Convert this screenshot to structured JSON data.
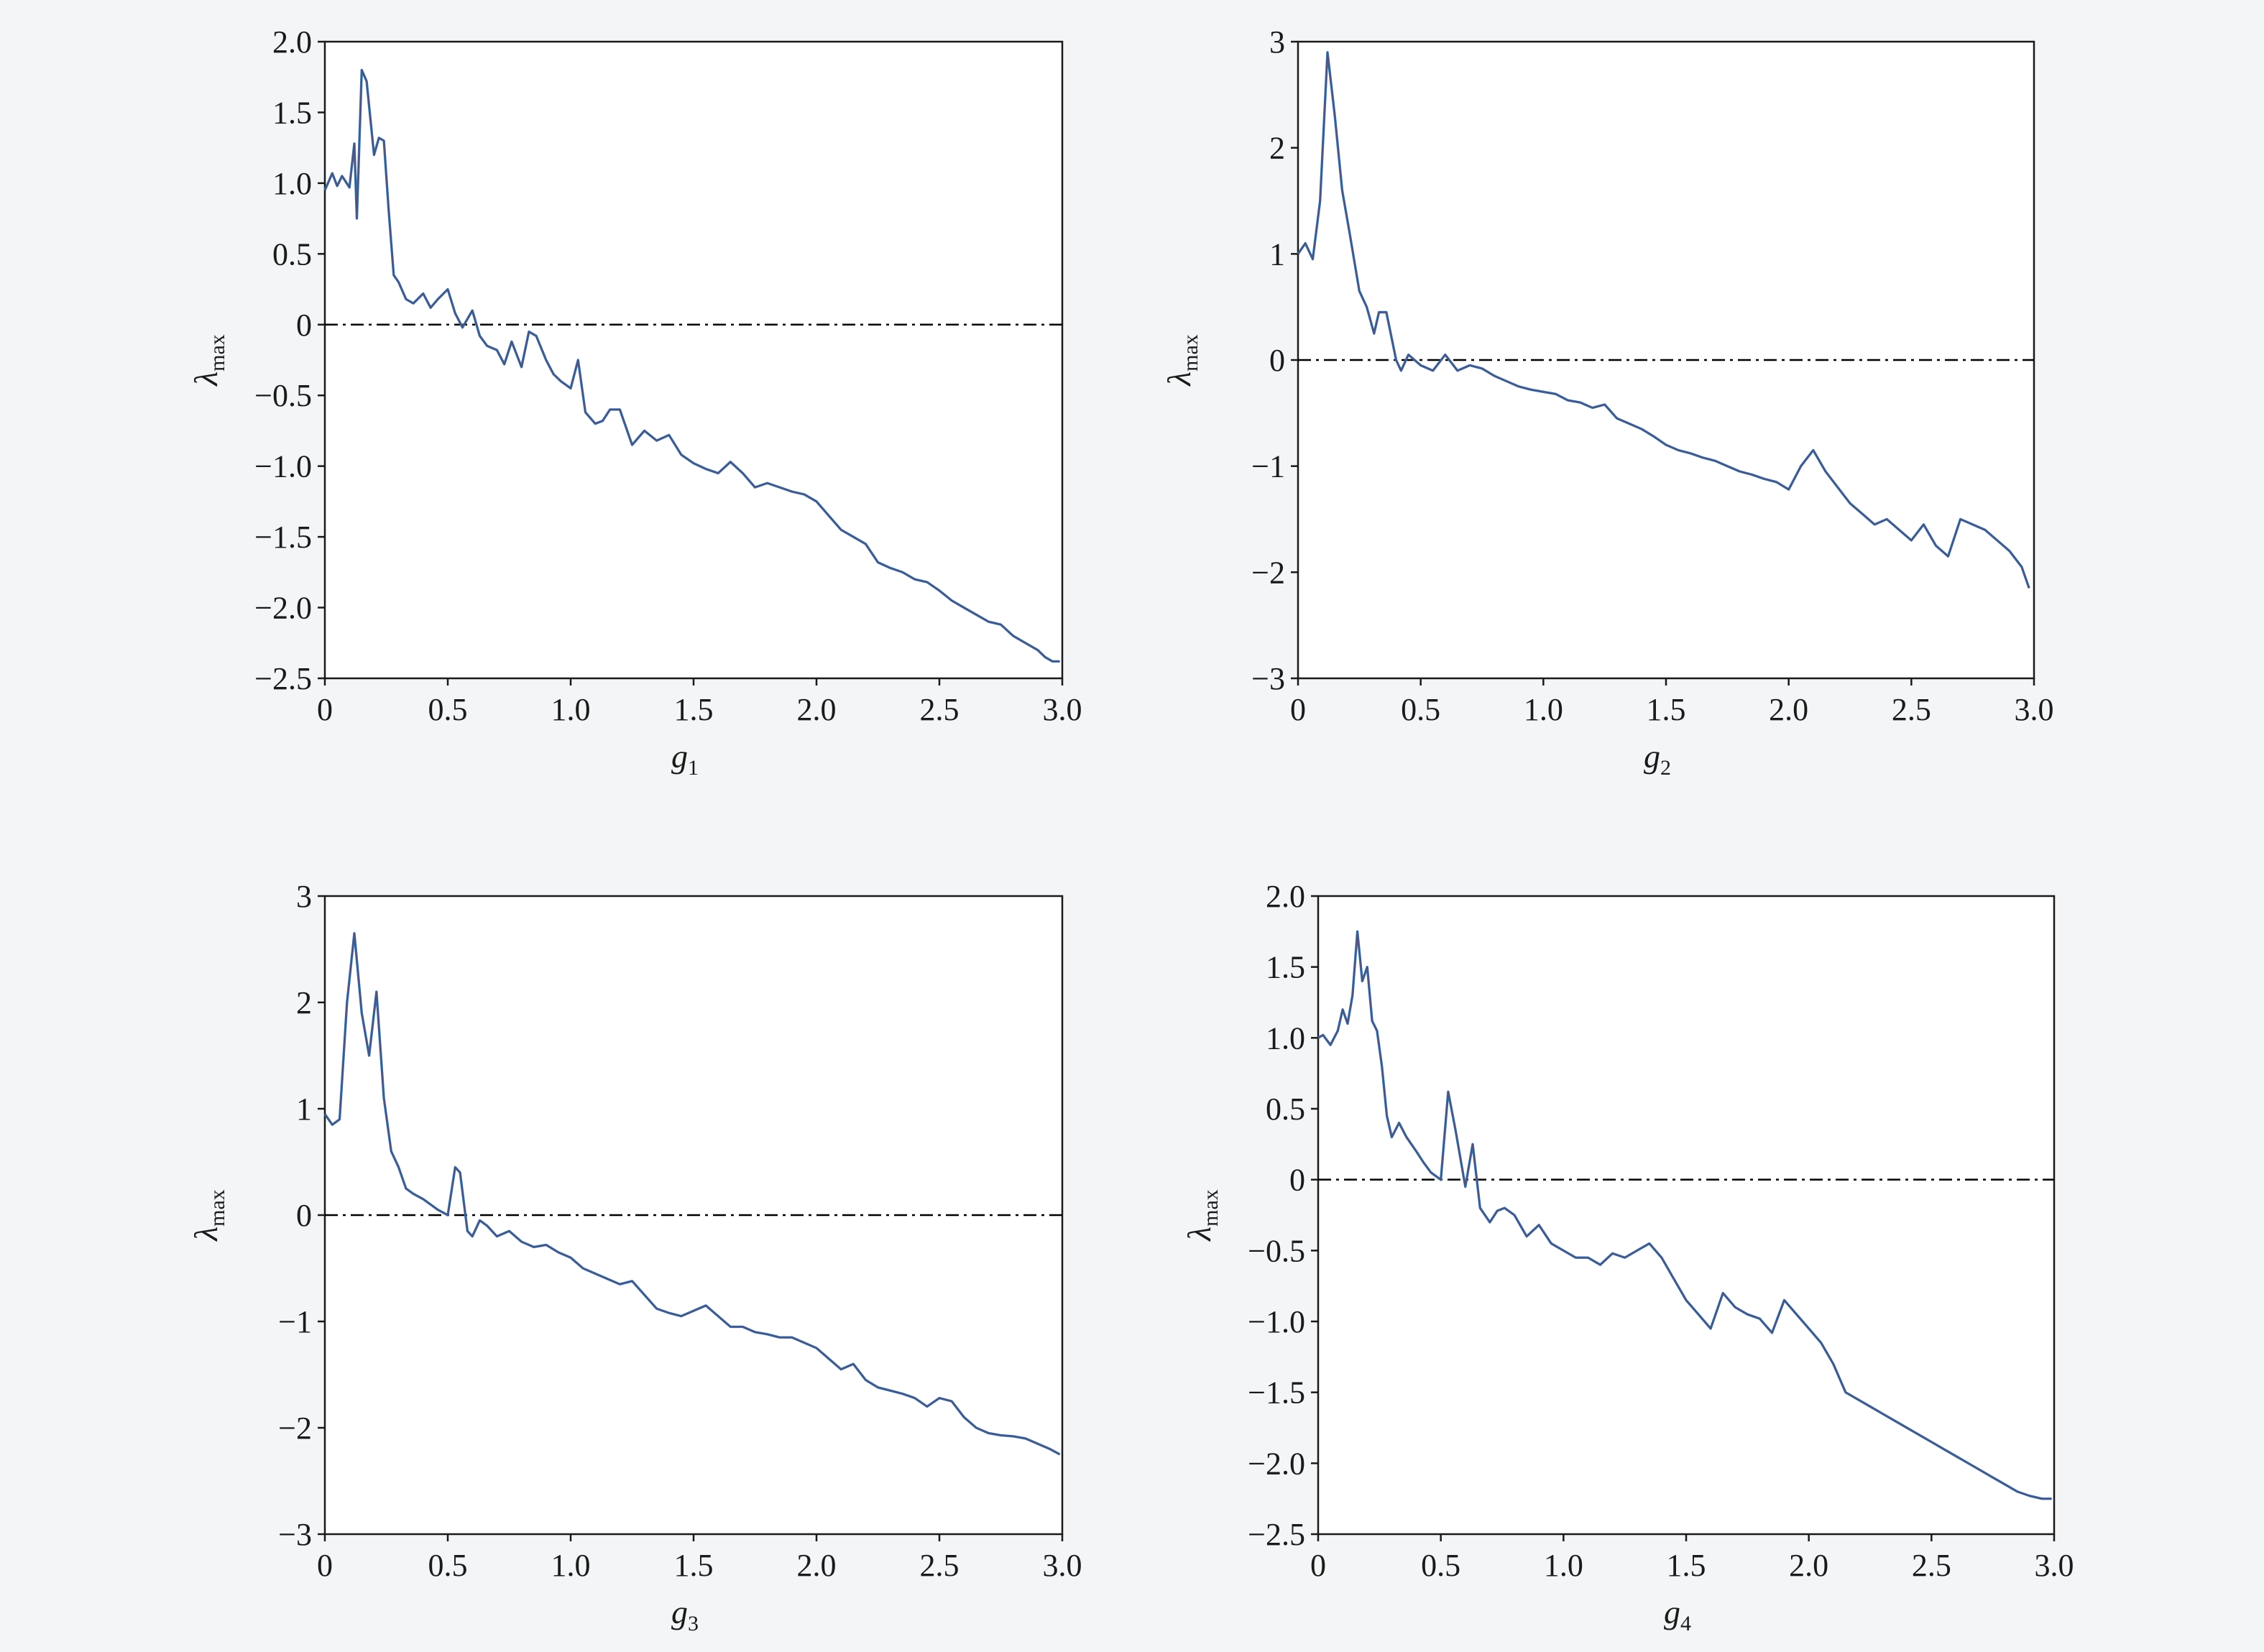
{
  "figure": {
    "line_color_primary": "#2b7bba",
    "line_color_overlay": "#5a4a6e",
    "reference_line_style": "dash-dot",
    "reference_color": "#000000"
  },
  "chart_data": [
    {
      "id": "g1",
      "type": "line",
      "xlabel_main": "g",
      "xlabel_sub": "1",
      "ylabel_main": "λ",
      "ylabel_sub": "max",
      "xlim": [
        0,
        3.0
      ],
      "ylim": [
        -2.5,
        2.0
      ],
      "xticks": [
        "0",
        "0.5",
        "1.0",
        "1.5",
        "2.0",
        "2.5",
        "3.0"
      ],
      "yticks": [
        "2.0",
        "1.5",
        "1.0",
        "0.5",
        "0",
        "−0.5",
        "−1.0",
        "−1.5",
        "−2.0",
        "−2.5"
      ],
      "reference_y": 0,
      "grid": false,
      "series": [
        {
          "x": [
            0,
            0.03,
            0.05,
            0.07,
            0.1,
            0.12,
            0.13,
            0.15,
            0.17,
            0.2,
            0.22,
            0.24,
            0.26,
            0.28,
            0.3,
            0.33,
            0.36,
            0.4,
            0.43,
            0.46,
            0.5,
            0.53,
            0.56,
            0.6,
            0.63,
            0.66,
            0.7,
            0.73,
            0.76,
            0.8,
            0.83,
            0.86,
            0.9,
            0.93,
            0.96,
            1.0,
            1.03,
            1.06,
            1.1,
            1.13,
            1.16,
            1.2,
            1.25,
            1.3,
            1.35,
            1.4,
            1.45,
            1.5,
            1.55,
            1.6,
            1.65,
            1.7,
            1.75,
            1.8,
            1.85,
            1.9,
            1.95,
            2.0,
            2.05,
            2.1,
            2.15,
            2.2,
            2.25,
            2.3,
            2.35,
            2.4,
            2.45,
            2.5,
            2.55,
            2.6,
            2.65,
            2.7,
            2.75,
            2.8,
            2.85,
            2.9,
            2.93,
            2.96,
            2.99
          ],
          "y": [
            0.95,
            1.07,
            0.98,
            1.05,
            0.97,
            1.28,
            0.75,
            1.8,
            1.72,
            1.2,
            1.32,
            1.3,
            0.8,
            0.35,
            0.3,
            0.18,
            0.15,
            0.22,
            0.12,
            0.18,
            0.25,
            0.08,
            -0.02,
            0.1,
            -0.08,
            -0.15,
            -0.18,
            -0.28,
            -0.12,
            -0.3,
            -0.05,
            -0.08,
            -0.25,
            -0.35,
            -0.4,
            -0.45,
            -0.25,
            -0.62,
            -0.7,
            -0.68,
            -0.6,
            -0.6,
            -0.85,
            -0.75,
            -0.82,
            -0.78,
            -0.92,
            -0.98,
            -1.02,
            -1.05,
            -0.97,
            -1.05,
            -1.15,
            -1.12,
            -1.15,
            -1.18,
            -1.2,
            -1.25,
            -1.35,
            -1.45,
            -1.5,
            -1.55,
            -1.68,
            -1.72,
            -1.75,
            -1.8,
            -1.82,
            -1.88,
            -1.95,
            -2.0,
            -2.05,
            -2.1,
            -2.12,
            -2.2,
            -2.25,
            -2.3,
            -2.35,
            -2.38,
            -2.38
          ]
        }
      ]
    },
    {
      "id": "g2",
      "type": "line",
      "xlabel_main": "g",
      "xlabel_sub": "2",
      "ylabel_main": "λ",
      "ylabel_sub": "max",
      "xlim": [
        0,
        3.0
      ],
      "ylim": [
        -3,
        3
      ],
      "xticks": [
        "0",
        "0.5",
        "1.0",
        "1.5",
        "2.0",
        "2.5",
        "3.0"
      ],
      "yticks": [
        "3",
        "2",
        "1",
        "0",
        "−1",
        "−2",
        "−3"
      ],
      "reference_y": 0,
      "grid": false,
      "series": [
        {
          "x": [
            0,
            0.03,
            0.06,
            0.09,
            0.12,
            0.15,
            0.18,
            0.21,
            0.25,
            0.28,
            0.31,
            0.33,
            0.36,
            0.4,
            0.42,
            0.45,
            0.5,
            0.55,
            0.6,
            0.65,
            0.7,
            0.75,
            0.8,
            0.85,
            0.9,
            0.95,
            1.0,
            1.05,
            1.1,
            1.15,
            1.2,
            1.25,
            1.3,
            1.35,
            1.4,
            1.45,
            1.5,
            1.55,
            1.6,
            1.65,
            1.7,
            1.75,
            1.8,
            1.85,
            1.9,
            1.95,
            2.0,
            2.05,
            2.1,
            2.15,
            2.2,
            2.25,
            2.3,
            2.35,
            2.4,
            2.45,
            2.5,
            2.55,
            2.6,
            2.65,
            2.7,
            2.75,
            2.8,
            2.85,
            2.9,
            2.95,
            2.98
          ],
          "y": [
            1.0,
            1.1,
            0.95,
            1.5,
            2.9,
            2.3,
            1.6,
            1.2,
            0.65,
            0.5,
            0.25,
            0.45,
            0.45,
            0.0,
            -0.1,
            0.05,
            -0.05,
            -0.1,
            0.05,
            -0.1,
            -0.05,
            -0.08,
            -0.15,
            -0.2,
            -0.25,
            -0.28,
            -0.3,
            -0.32,
            -0.38,
            -0.4,
            -0.45,
            -0.42,
            -0.55,
            -0.6,
            -0.65,
            -0.72,
            -0.8,
            -0.85,
            -0.88,
            -0.92,
            -0.95,
            -1.0,
            -1.05,
            -1.08,
            -1.12,
            -1.15,
            -1.22,
            -1.0,
            -0.85,
            -1.05,
            -1.2,
            -1.35,
            -1.45,
            -1.55,
            -1.5,
            -1.6,
            -1.7,
            -1.55,
            -1.75,
            -1.85,
            -1.5,
            -1.55,
            -1.6,
            -1.7,
            -1.8,
            -1.95,
            -2.15
          ]
        }
      ]
    },
    {
      "id": "g3",
      "type": "line",
      "xlabel_main": "g",
      "xlabel_sub": "3",
      "ylabel_main": "λ",
      "ylabel_sub": "max",
      "xlim": [
        0,
        3.0
      ],
      "ylim": [
        -3,
        3
      ],
      "xticks": [
        "0",
        "0.5",
        "1.0",
        "1.5",
        "2.0",
        "2.5",
        "3.0"
      ],
      "yticks": [
        "3",
        "2",
        "1",
        "0",
        "−1",
        "−2",
        "−3"
      ],
      "reference_y": 0,
      "grid": false,
      "series": [
        {
          "x": [
            0,
            0.03,
            0.06,
            0.09,
            0.12,
            0.15,
            0.18,
            0.21,
            0.24,
            0.27,
            0.3,
            0.33,
            0.36,
            0.4,
            0.43,
            0.46,
            0.5,
            0.53,
            0.55,
            0.58,
            0.6,
            0.63,
            0.66,
            0.7,
            0.75,
            0.8,
            0.85,
            0.9,
            0.95,
            1.0,
            1.05,
            1.1,
            1.15,
            1.2,
            1.25,
            1.3,
            1.35,
            1.4,
            1.45,
            1.5,
            1.55,
            1.6,
            1.65,
            1.7,
            1.75,
            1.8,
            1.85,
            1.9,
            1.95,
            2.0,
            2.05,
            2.1,
            2.15,
            2.2,
            2.25,
            2.3,
            2.35,
            2.4,
            2.45,
            2.5,
            2.55,
            2.6,
            2.65,
            2.7,
            2.75,
            2.8,
            2.85,
            2.9,
            2.95,
            2.99
          ],
          "y": [
            0.95,
            0.85,
            0.9,
            2.0,
            2.65,
            1.9,
            1.5,
            2.1,
            1.1,
            0.6,
            0.45,
            0.25,
            0.2,
            0.15,
            0.1,
            0.05,
            0.0,
            0.45,
            0.4,
            -0.15,
            -0.2,
            -0.05,
            -0.1,
            -0.2,
            -0.15,
            -0.25,
            -0.3,
            -0.28,
            -0.35,
            -0.4,
            -0.5,
            -0.55,
            -0.6,
            -0.65,
            -0.62,
            -0.75,
            -0.88,
            -0.92,
            -0.95,
            -0.9,
            -0.85,
            -0.95,
            -1.05,
            -1.05,
            -1.1,
            -1.12,
            -1.15,
            -1.15,
            -1.2,
            -1.25,
            -1.35,
            -1.45,
            -1.4,
            -1.55,
            -1.62,
            -1.65,
            -1.68,
            -1.72,
            -1.8,
            -1.72,
            -1.75,
            -1.9,
            -2.0,
            -2.05,
            -2.07,
            -2.08,
            -2.1,
            -2.15,
            -2.2,
            -2.25
          ]
        }
      ]
    },
    {
      "id": "g4",
      "type": "line",
      "xlabel_main": "g",
      "xlabel_sub": "4",
      "ylabel_main": "λ",
      "ylabel_sub": "max",
      "xlim": [
        0,
        3.0
      ],
      "ylim": [
        -2.5,
        2.0
      ],
      "xticks": [
        "0",
        "0.5",
        "1.0",
        "1.5",
        "2.0",
        "2.5",
        "3.0"
      ],
      "yticks": [
        "2.0",
        "1.5",
        "1.0",
        "0.5",
        "0",
        "−0.5",
        "−1.0",
        "−1.5",
        "−2.0",
        "−2.5"
      ],
      "reference_y": 0,
      "grid": false,
      "series": [
        {
          "x": [
            0,
            0.02,
            0.05,
            0.08,
            0.1,
            0.12,
            0.14,
            0.16,
            0.18,
            0.2,
            0.22,
            0.24,
            0.26,
            0.28,
            0.3,
            0.33,
            0.36,
            0.4,
            0.43,
            0.46,
            0.5,
            0.53,
            0.56,
            0.6,
            0.63,
            0.66,
            0.7,
            0.73,
            0.76,
            0.8,
            0.85,
            0.9,
            0.95,
            1.0,
            1.05,
            1.1,
            1.15,
            1.2,
            1.25,
            1.3,
            1.35,
            1.4,
            1.45,
            1.5,
            1.55,
            1.6,
            1.65,
            1.7,
            1.75,
            1.8,
            1.85,
            1.9,
            1.95,
            2.0,
            2.05,
            2.1,
            2.15,
            2.2,
            2.25,
            2.3,
            2.35,
            2.4,
            2.45,
            2.5,
            2.55,
            2.6,
            2.65,
            2.7,
            2.75,
            2.8,
            2.85,
            2.9,
            2.95,
            2.99
          ],
          "y": [
            1.0,
            1.02,
            0.95,
            1.05,
            1.2,
            1.1,
            1.3,
            1.75,
            1.4,
            1.5,
            1.12,
            1.05,
            0.8,
            0.45,
            0.3,
            0.4,
            0.3,
            0.2,
            0.12,
            0.05,
            0.0,
            0.62,
            0.35,
            -0.05,
            0.25,
            -0.2,
            -0.3,
            -0.22,
            -0.2,
            -0.25,
            -0.4,
            -0.32,
            -0.45,
            -0.5,
            -0.55,
            -0.55,
            -0.6,
            -0.52,
            -0.55,
            -0.5,
            -0.45,
            -0.55,
            -0.7,
            -0.85,
            -0.95,
            -1.05,
            -0.8,
            -0.9,
            -0.95,
            -0.98,
            -1.08,
            -0.85,
            -0.95,
            -1.05,
            -1.15,
            -1.3,
            -1.5,
            -1.55,
            -1.6,
            -1.65,
            -1.7,
            -1.75,
            -1.8,
            -1.85,
            -1.9,
            -1.95,
            -2.0,
            -2.05,
            -2.1,
            -2.15,
            -2.2,
            -2.23,
            -2.25,
            -2.25
          ]
        }
      ]
    }
  ]
}
